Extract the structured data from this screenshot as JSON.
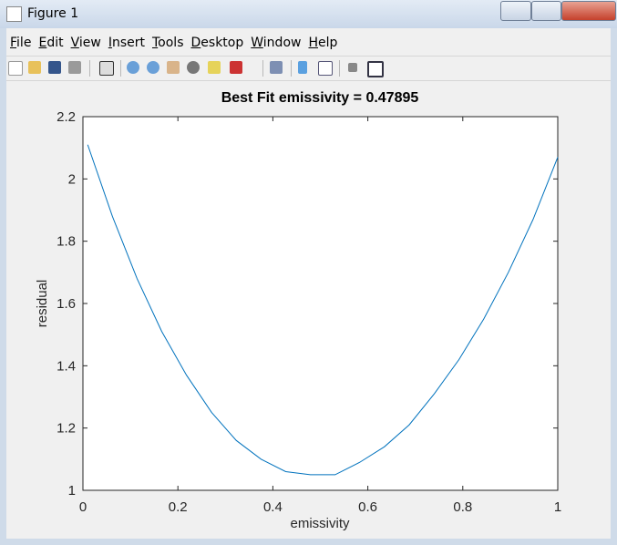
{
  "window": {
    "title": "Figure 1"
  },
  "menu": [
    "File",
    "Edit",
    "View",
    "Insert",
    "Tools",
    "Desktop",
    "Window",
    "Help"
  ],
  "chart_data": {
    "type": "line",
    "title": "Best Fit emissivity = 0.47895",
    "x_label": "emissivity",
    "y_label": "residual",
    "x": [
      0.01,
      0.062,
      0.114,
      0.166,
      0.218,
      0.271,
      0.323,
      0.375,
      0.427,
      0.479,
      0.531,
      0.583,
      0.635,
      0.687,
      0.74,
      0.792,
      0.844,
      0.896,
      0.948,
      1.0
    ],
    "values": [
      2.11,
      1.88,
      1.68,
      1.51,
      1.37,
      1.25,
      1.16,
      1.1,
      1.06,
      1.05,
      1.05,
      1.09,
      1.14,
      1.21,
      1.31,
      1.42,
      1.55,
      1.7,
      1.87,
      2.07
    ],
    "color": "#0072bd",
    "xlim": [
      0,
      1
    ],
    "xticks": [
      0,
      0.2,
      0.4,
      0.6,
      0.8,
      1
    ],
    "ylim": [
      1,
      2.2
    ],
    "yticks": [
      1,
      1.2,
      1.4,
      1.6,
      1.8,
      2,
      2.2
    ]
  }
}
